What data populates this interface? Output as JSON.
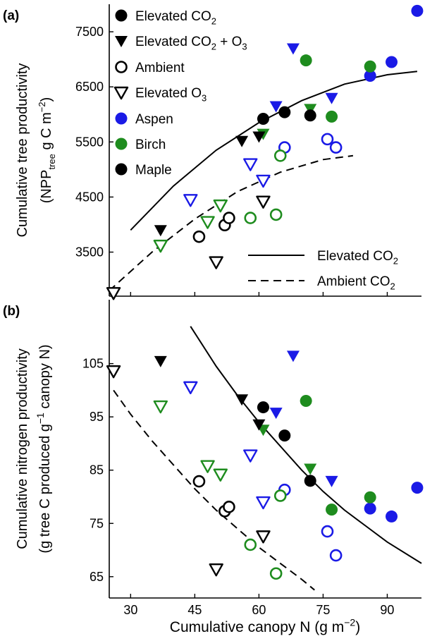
{
  "chart_data": [
    {
      "panel_label": "(a)",
      "type": "scatter",
      "ylabel_line1": "Cumulative tree productivity",
      "ylabel_line2_parts": [
        "(NPP",
        "tree",
        " g C m",
        "−2",
        ")"
      ],
      "xlim": [
        25,
        98
      ],
      "ylim": [
        2700,
        8000
      ],
      "yticks": [
        3500,
        4500,
        5500,
        6500,
        7500
      ],
      "xticks": [
        30,
        45,
        60,
        75,
        90
      ],
      "legend_treatments": [
        {
          "marker": "circle-filled",
          "parts": [
            "Elevated CO",
            "2",
            ""
          ]
        },
        {
          "marker": "triangle-filled",
          "parts": [
            "Elevated CO",
            "2",
            " + O",
            "3"
          ]
        },
        {
          "marker": "circle-open",
          "parts": [
            "Ambient"
          ]
        },
        {
          "marker": "triangle-open",
          "parts": [
            "Elevated O",
            "3"
          ]
        }
      ],
      "legend_species": [
        {
          "name": "Aspen",
          "color": "#1a1ae6"
        },
        {
          "name": "Birch",
          "color": "#1e8c1e"
        },
        {
          "name": "Maple",
          "color": "#000000"
        }
      ],
      "legend_lines": [
        {
          "style": "solid",
          "parts": [
            "Elevated CO",
            "2"
          ]
        },
        {
          "style": "dashed",
          "parts": [
            "Ambient CO",
            "2"
          ]
        }
      ],
      "curves": {
        "elevated": [
          [
            30,
            3900
          ],
          [
            40,
            4700
          ],
          [
            50,
            5350
          ],
          [
            60,
            5850
          ],
          [
            70,
            6250
          ],
          [
            80,
            6550
          ],
          [
            90,
            6720
          ],
          [
            97,
            6780
          ]
        ],
        "ambient": [
          [
            25,
            2800
          ],
          [
            35,
            3500
          ],
          [
            45,
            4100
          ],
          [
            55,
            4600
          ],
          [
            65,
            4950
          ],
          [
            75,
            5180
          ],
          [
            82,
            5250
          ]
        ]
      },
      "points": [
        {
          "x": 97,
          "y": 7880,
          "sp": "aspen",
          "tr": "eco2"
        },
        {
          "x": 91,
          "y": 6950,
          "sp": "aspen",
          "tr": "eco2"
        },
        {
          "x": 86,
          "y": 6700,
          "sp": "aspen",
          "tr": "eco2"
        },
        {
          "x": 68,
          "y": 7200,
          "sp": "aspen",
          "tr": "eco2o3"
        },
        {
          "x": 77,
          "y": 6300,
          "sp": "aspen",
          "tr": "eco2o3"
        },
        {
          "x": 64,
          "y": 6150,
          "sp": "aspen",
          "tr": "eco2o3"
        },
        {
          "x": 76,
          "y": 5550,
          "sp": "aspen",
          "tr": "amb"
        },
        {
          "x": 78,
          "y": 5400,
          "sp": "aspen",
          "tr": "amb"
        },
        {
          "x": 66,
          "y": 5400,
          "sp": "aspen",
          "tr": "amb"
        },
        {
          "x": 58,
          "y": 5100,
          "sp": "aspen",
          "tr": "eo3"
        },
        {
          "x": 61,
          "y": 4800,
          "sp": "aspen",
          "tr": "eo3"
        },
        {
          "x": 44,
          "y": 4450,
          "sp": "aspen",
          "tr": "eo3"
        },
        {
          "x": 71,
          "y": 6980,
          "sp": "birch",
          "tr": "eco2"
        },
        {
          "x": 86,
          "y": 6870,
          "sp": "birch",
          "tr": "eco2"
        },
        {
          "x": 77,
          "y": 5960,
          "sp": "birch",
          "tr": "eco2"
        },
        {
          "x": 72,
          "y": 6100,
          "sp": "birch",
          "tr": "eco2o3"
        },
        {
          "x": 61,
          "y": 5650,
          "sp": "birch",
          "tr": "eco2o3"
        },
        {
          "x": 65,
          "y": 5250,
          "sp": "birch",
          "tr": "amb"
        },
        {
          "x": 58,
          "y": 4120,
          "sp": "birch",
          "tr": "amb"
        },
        {
          "x": 64,
          "y": 4180,
          "sp": "birch",
          "tr": "amb"
        },
        {
          "x": 51,
          "y": 4350,
          "sp": "birch",
          "tr": "eo3"
        },
        {
          "x": 48,
          "y": 4050,
          "sp": "birch",
          "tr": "eo3"
        },
        {
          "x": 37,
          "y": 3620,
          "sp": "birch",
          "tr": "eo3"
        },
        {
          "x": 61,
          "y": 5920,
          "sp": "maple",
          "tr": "eco2"
        },
        {
          "x": 66,
          "y": 6040,
          "sp": "maple",
          "tr": "eco2"
        },
        {
          "x": 72,
          "y": 5980,
          "sp": "maple",
          "tr": "eco2"
        },
        {
          "x": 56,
          "y": 5520,
          "sp": "maple",
          "tr": "eco2o3"
        },
        {
          "x": 60,
          "y": 5600,
          "sp": "maple",
          "tr": "eco2o3"
        },
        {
          "x": 37,
          "y": 3900,
          "sp": "maple",
          "tr": "eco2o3"
        },
        {
          "x": 46,
          "y": 3780,
          "sp": "maple",
          "tr": "amb"
        },
        {
          "x": 52,
          "y": 3990,
          "sp": "maple",
          "tr": "amb"
        },
        {
          "x": 53,
          "y": 4120,
          "sp": "maple",
          "tr": "amb"
        },
        {
          "x": 61,
          "y": 4420,
          "sp": "maple",
          "tr": "eo3"
        },
        {
          "x": 50,
          "y": 3320,
          "sp": "maple",
          "tr": "eo3"
        },
        {
          "x": 26,
          "y": 2760,
          "sp": "maple",
          "tr": "eo3"
        }
      ]
    },
    {
      "panel_label": "(b)",
      "type": "scatter",
      "ylabel_line1": "Cumulative nitrogen productivity",
      "ylabel_line2_parts": [
        "(g tree C produced g",
        "−1",
        " canopy N)"
      ],
      "xlabel_parts": [
        "Cumulative canopy N (g m",
        "−2",
        ")"
      ],
      "xlim": [
        25,
        98
      ],
      "ylim": [
        61,
        117
      ],
      "yticks": [
        65,
        75,
        85,
        95,
        105
      ],
      "xticks": [
        30,
        45,
        60,
        75,
        90
      ],
      "curves": {
        "elevated": [
          [
            44,
            112
          ],
          [
            50,
            104.5
          ],
          [
            55,
            99
          ],
          [
            60,
            94
          ],
          [
            65,
            89.5
          ],
          [
            70,
            85
          ],
          [
            75,
            81
          ],
          [
            80,
            77.5
          ],
          [
            85,
            74.5
          ],
          [
            90,
            71.5
          ],
          [
            98,
            67.5
          ]
        ],
        "ambient": [
          [
            26,
            100
          ],
          [
            30,
            95.5
          ],
          [
            35,
            90.5
          ],
          [
            40,
            86
          ],
          [
            45,
            81.5
          ],
          [
            50,
            77.5
          ],
          [
            55,
            74
          ],
          [
            60,
            70.5
          ],
          [
            65,
            67.5
          ],
          [
            70,
            64.5
          ],
          [
            73,
            62.5
          ]
        ]
      },
      "points": [
        {
          "x": 97,
          "y": 81.7,
          "sp": "aspen",
          "tr": "eco2"
        },
        {
          "x": 91,
          "y": 76.3,
          "sp": "aspen",
          "tr": "eco2"
        },
        {
          "x": 86,
          "y": 77.8,
          "sp": "aspen",
          "tr": "eco2"
        },
        {
          "x": 68,
          "y": 106.5,
          "sp": "aspen",
          "tr": "eco2o3"
        },
        {
          "x": 64,
          "y": 95.8,
          "sp": "aspen",
          "tr": "eco2o3"
        },
        {
          "x": 77,
          "y": 83,
          "sp": "aspen",
          "tr": "eco2o3"
        },
        {
          "x": 66,
          "y": 81.3,
          "sp": "aspen",
          "tr": "amb"
        },
        {
          "x": 76,
          "y": 73.5,
          "sp": "aspen",
          "tr": "amb"
        },
        {
          "x": 78,
          "y": 69,
          "sp": "aspen",
          "tr": "amb"
        },
        {
          "x": 44,
          "y": 100.6,
          "sp": "aspen",
          "tr": "eo3"
        },
        {
          "x": 58,
          "y": 87.8,
          "sp": "aspen",
          "tr": "eo3"
        },
        {
          "x": 61,
          "y": 79,
          "sp": "aspen",
          "tr": "eo3"
        },
        {
          "x": 71,
          "y": 98,
          "sp": "birch",
          "tr": "eco2"
        },
        {
          "x": 86,
          "y": 79.9,
          "sp": "birch",
          "tr": "eco2"
        },
        {
          "x": 77,
          "y": 77.6,
          "sp": "birch",
          "tr": "eco2"
        },
        {
          "x": 61,
          "y": 92.6,
          "sp": "birch",
          "tr": "eco2o3"
        },
        {
          "x": 72,
          "y": 85.3,
          "sp": "birch",
          "tr": "eco2o3"
        },
        {
          "x": 65,
          "y": 80.2,
          "sp": "birch",
          "tr": "amb"
        },
        {
          "x": 58,
          "y": 71,
          "sp": "birch",
          "tr": "amb"
        },
        {
          "x": 64,
          "y": 65.6,
          "sp": "birch",
          "tr": "amb"
        },
        {
          "x": 37,
          "y": 97,
          "sp": "birch",
          "tr": "eo3"
        },
        {
          "x": 48,
          "y": 85.8,
          "sp": "birch",
          "tr": "eo3"
        },
        {
          "x": 51,
          "y": 84.2,
          "sp": "birch",
          "tr": "eo3"
        },
        {
          "x": 61,
          "y": 96.8,
          "sp": "maple",
          "tr": "eco2"
        },
        {
          "x": 66,
          "y": 91.5,
          "sp": "maple",
          "tr": "eco2"
        },
        {
          "x": 72,
          "y": 83,
          "sp": "maple",
          "tr": "eco2"
        },
        {
          "x": 37,
          "y": 105.5,
          "sp": "maple",
          "tr": "eco2o3"
        },
        {
          "x": 56,
          "y": 98.3,
          "sp": "maple",
          "tr": "eco2o3"
        },
        {
          "x": 60,
          "y": 93.6,
          "sp": "maple",
          "tr": "eco2o3"
        },
        {
          "x": 46,
          "y": 82.9,
          "sp": "maple",
          "tr": "amb"
        },
        {
          "x": 52,
          "y": 77.3,
          "sp": "maple",
          "tr": "amb"
        },
        {
          "x": 53,
          "y": 78.1,
          "sp": "maple",
          "tr": "amb"
        },
        {
          "x": 26,
          "y": 103.6,
          "sp": "maple",
          "tr": "eo3"
        },
        {
          "x": 61,
          "y": 72.6,
          "sp": "maple",
          "tr": "eo3"
        },
        {
          "x": 50,
          "y": 66.4,
          "sp": "maple",
          "tr": "eo3"
        }
      ]
    }
  ],
  "colors": {
    "aspen": "#1a1ae6",
    "birch": "#1e8c1e",
    "maple": "#000000",
    "axis": "#000000"
  }
}
